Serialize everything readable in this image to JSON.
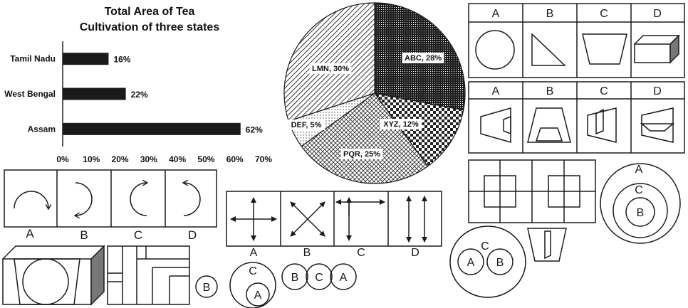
{
  "chart_data": [
    {
      "type": "bar",
      "orientation": "horizontal",
      "title_lines": [
        "Total Area of Tea",
        "Cultivation of three states"
      ],
      "categories": [
        "Tamil Nadu",
        "West Bengal",
        "Assam"
      ],
      "values": [
        16,
        22,
        62
      ],
      "value_labels": [
        "16%",
        "22%",
        "62%"
      ],
      "xlim": [
        0,
        70
      ],
      "x_ticks": [
        "0%",
        "10%",
        "20%",
        "30%",
        "40%",
        "50%",
        "60%",
        "70%"
      ],
      "grid": false,
      "bar_color": "#1a1a1a"
    },
    {
      "type": "pie",
      "slices": [
        {
          "label": "ABC, 28%",
          "value": 28
        },
        {
          "label": "XYZ, 12%",
          "value": 12
        },
        {
          "label": "PQR, 25%",
          "value": 25
        },
        {
          "label": "DEF, 5%",
          "value": 5
        },
        {
          "label": "LMN, 30%",
          "value": 30
        }
      ]
    }
  ],
  "shape_grid": {
    "headers": [
      "A",
      "B",
      "C",
      "D"
    ]
  },
  "trap_grid": {
    "headers": [
      "A",
      "B",
      "C",
      "D"
    ]
  },
  "arc_options": {
    "labels": [
      "A",
      "B",
      "C",
      "D"
    ]
  },
  "arrow_options": {
    "labels": [
      "A",
      "B",
      "C",
      "D"
    ]
  },
  "venn_nested_big": {
    "outer": "A",
    "middle": "C",
    "inner": "B"
  },
  "venn_small_b": {
    "label": "B"
  },
  "venn_c_over_a": {
    "outer": "C",
    "inner": "A"
  },
  "venn_chain": {
    "labels": [
      "B",
      "C",
      "A"
    ]
  },
  "venn_c_with_ab": {
    "top": "C",
    "left": "A",
    "right": "B"
  },
  "colors": {
    "ink": "#1a1a1a",
    "box_side": "#777777"
  }
}
